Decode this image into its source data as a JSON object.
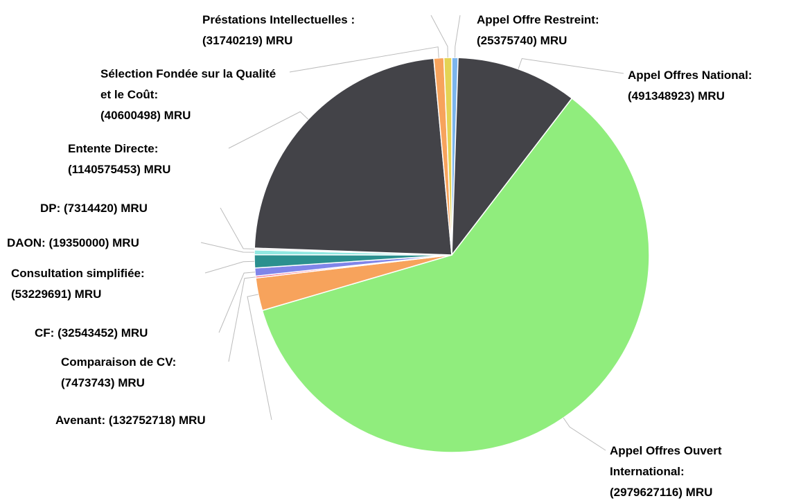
{
  "chart_data": {
    "type": "pie",
    "categories": [
      "Appel Offre Restreint:",
      "Appel Offres National:",
      "Appel Offres Ouvert International:",
      "Avenant:",
      "Comparaison de CV:",
      "CF:",
      "Consultation simplifiée:",
      "DAON:",
      "DP:",
      "Entente Directe:",
      "Sélection Fondée sur la Qualité et le Coût:",
      "Préstations Intellectuelles :"
    ],
    "values": [
      25375740,
      491348923,
      2979627116,
      132752718,
      7473743,
      32543452,
      53229691,
      19350000,
      7314420,
      1140575453,
      40600498,
      31740219
    ],
    "value_labels": [
      "(25375740) MRU",
      "(491348923) MRU",
      "(2979627116) MRU",
      "(132752718) MRU",
      "(7473743) MRU",
      "(32543452) MRU",
      "(53229691) MRU",
      "(19350000) MRU",
      "(7314420) MRU",
      "(1140575453) MRU",
      "(40600498) MRU",
      "(31740219) MRU"
    ],
    "colors": [
      "#7cb5ec",
      "#434348",
      "#90ed7d",
      "#f7a35c",
      "#f15c80",
      "#8085e9",
      "#2b908f",
      "#91e8e1",
      "#e8e8e8",
      "#434348",
      "#f7a35c",
      "#e4d354"
    ]
  }
}
